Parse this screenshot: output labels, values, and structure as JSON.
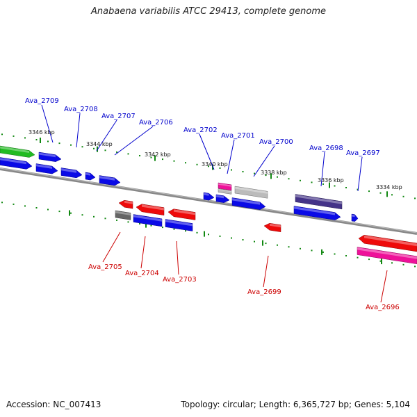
{
  "title": "Anabaena variabilis ATCC 29413, complete genome",
  "footer": {
    "accession": "Accession: NC_007413",
    "summary": "Topology: circular; Length: 6,365,727 bp; Genes: 5,104"
  },
  "colors": {
    "forward_label": "#0000cc",
    "reverse_label": "#cc0000",
    "blue_gene": "#0a0ae6",
    "red_gene": "#ee0a0a",
    "green_gene": "#22bb22",
    "grey_gene": "#bbbbbb",
    "dark_grey_gene": "#666666",
    "magenta_gene": "#ee1199",
    "purple_gene": "#443388",
    "tick_color": "#118811",
    "backbone": "#888888"
  },
  "kbp_labels": [
    "3346 kbp",
    "3344 kbp",
    "3342 kbp",
    "3340 kbp",
    "3338 kbp",
    "3336 kbp",
    "3334 kbp"
  ],
  "forward_genes": [
    "Ava_2709",
    "Ava_2708",
    "Ava_2707",
    "Ava_2706",
    "Ava_2702",
    "Ava_2701",
    "Ava_2700",
    "Ava_2698",
    "Ava_2697"
  ],
  "reverse_genes": [
    "Ava_2705",
    "Ava_2704",
    "Ava_2703",
    "Ava_2699",
    "Ava_2696"
  ]
}
